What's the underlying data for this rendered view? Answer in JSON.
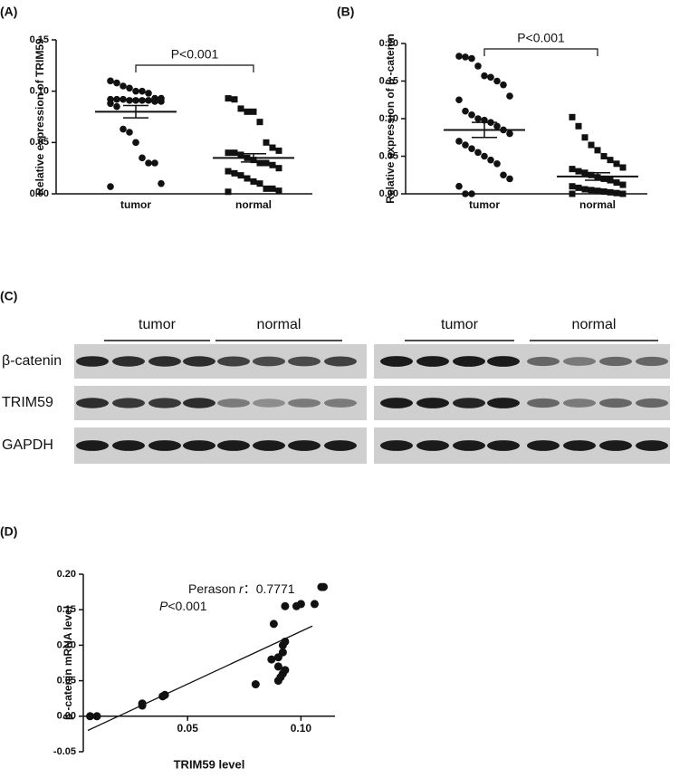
{
  "chart_data": [
    {
      "type": "dotplot",
      "panel": "(A)",
      "y_label": "Relative expression of TRIM59",
      "categories": [
        "tumor",
        "normal"
      ],
      "groups": [
        {
          "marker": "circle",
          "mean": 0.08,
          "sem": 0.006,
          "values": [
            0.11,
            0.108,
            0.105,
            0.103,
            0.1,
            0.1,
            0.098,
            0.093,
            0.093,
            0.092,
            0.092,
            0.092,
            0.091,
            0.091,
            0.091,
            0.091,
            0.09,
            0.09,
            0.088,
            0.085,
            0.063,
            0.06,
            0.05,
            0.035,
            0.03,
            0.03,
            0.01,
            0.007
          ]
        },
        {
          "marker": "square",
          "mean": 0.035,
          "sem": 0.004,
          "values": [
            0.093,
            0.092,
            0.083,
            0.08,
            0.08,
            0.07,
            0.05,
            0.045,
            0.042,
            0.04,
            0.04,
            0.038,
            0.035,
            0.033,
            0.03,
            0.03,
            0.028,
            0.025,
            0.022,
            0.02,
            0.018,
            0.015,
            0.012,
            0.01,
            0.005,
            0.005,
            0.003,
            0.002
          ]
        }
      ],
      "ylim": [
        0,
        0.15
      ],
      "yticks": [
        {
          "value": 0,
          "label": "0.00"
        },
        0.05,
        {
          "value": 0.1,
          "label": "0.10"
        },
        0.15
      ],
      "annotation": "P<0.001",
      "color": "#111111"
    },
    {
      "type": "dotplot",
      "panel": "(B)",
      "y_label": "Relative expression of β -catenin",
      "categories": [
        "tumor",
        "normal"
      ],
      "groups": [
        {
          "marker": "circle",
          "mean": 0.085,
          "sem": 0.01,
          "values": [
            0.183,
            0.182,
            0.18,
            0.17,
            0.157,
            0.155,
            0.15,
            0.145,
            0.13,
            0.125,
            0.11,
            0.105,
            0.1,
            0.098,
            0.095,
            0.09,
            0.085,
            0.08,
            0.07,
            0.065,
            0.06,
            0.055,
            0.05,
            0.045,
            0.04,
            0.025,
            0.02,
            0.01,
            0.0,
            0.0
          ]
        },
        {
          "marker": "square",
          "mean": 0.023,
          "sem": 0.005,
          "values": [
            0.102,
            0.09,
            0.075,
            0.065,
            0.058,
            0.05,
            0.045,
            0.04,
            0.035,
            0.033,
            0.03,
            0.028,
            0.025,
            0.022,
            0.02,
            0.018,
            0.015,
            0.012,
            0.01,
            0.008,
            0.006,
            0.005,
            0.004,
            0.003,
            0.002,
            0.001,
            0.0,
            0.0
          ]
        }
      ],
      "ylim": [
        0,
        0.2
      ],
      "yticks": [
        {
          "value": 0,
          "label": "0.00"
        },
        0.05,
        {
          "value": 0.1,
          "label": "0.10"
        },
        0.15,
        {
          "value": 0.2,
          "label": "0.20"
        }
      ],
      "annotation": "P<0.001",
      "color": "#111111"
    },
    {
      "type": "scatter",
      "panel": "(D)",
      "x_label": "TRIM59 level",
      "y_label": "β -catenin mRNA level",
      "x": [
        0.007,
        0.01,
        0.03,
        0.03,
        0.039,
        0.04,
        0.08,
        0.087,
        0.09,
        0.088,
        0.093,
        0.092,
        0.093,
        0.092,
        0.09,
        0.092,
        0.093,
        0.091,
        0.098,
        0.1,
        0.106,
        0.109,
        0.11,
        0.09
      ],
      "y": [
        0.0,
        0.0,
        0.015,
        0.018,
        0.028,
        0.03,
        0.045,
        0.08,
        0.083,
        0.13,
        0.155,
        0.1,
        0.105,
        0.09,
        0.05,
        0.06,
        0.065,
        0.055,
        0.155,
        0.158,
        0.158,
        0.182,
        0.182,
        0.07
      ],
      "fit_x": [
        0.006,
        0.105
      ],
      "fit_y": [
        -0.02,
        0.127
      ],
      "xlim": [
        0.004,
        0.115
      ],
      "ylim": [
        -0.05,
        0.2
      ],
      "xticks": [
        0.05,
        {
          "value": 0.1,
          "label": "0.10"
        }
      ],
      "yticks": [
        -0.05,
        {
          "value": 0,
          "label": "0.00"
        },
        0.05,
        {
          "value": 0.1,
          "label": "0.10"
        },
        0.15,
        {
          "value": 0.2,
          "label": "0.20"
        }
      ],
      "stat_label": "Perason ",
      "stat_symbol": "r",
      "stat_value": "：0.7771",
      "p_symbol": "P",
      "p_text": "<0.001",
      "color": "#111111"
    }
  ],
  "blot": {
    "panel": "(C)",
    "groups": [
      "tumor",
      "normal",
      "tumor",
      "normal"
    ],
    "rows": [
      "β-catenin",
      "TRIM59",
      "GAPDH"
    ]
  }
}
